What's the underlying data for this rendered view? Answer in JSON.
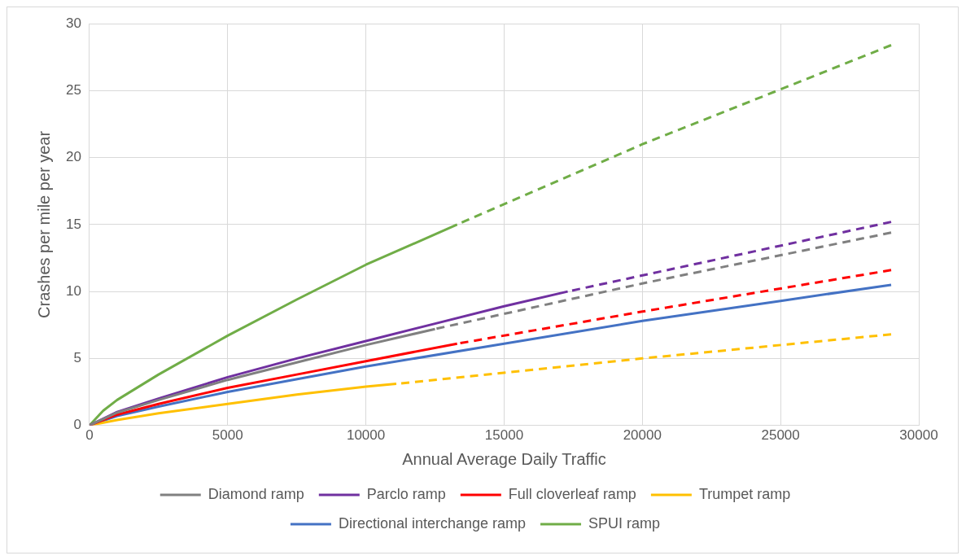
{
  "chart_data": {
    "type": "line",
    "xlabel": "Annual Average Daily Traffic",
    "ylabel": "Crashes per mile per year",
    "xlim": [
      0,
      30000
    ],
    "xticks": [
      0,
      5000,
      10000,
      15000,
      20000,
      25000,
      30000
    ],
    "ylim": [
      0,
      30
    ],
    "yticks": [
      0,
      5,
      10,
      15,
      20,
      25,
      30
    ],
    "grid": true,
    "legend": "bottom",
    "marker": "none",
    "series": [
      {
        "name": "Diamond ramp",
        "color": "#808080",
        "line_style": "solid",
        "x": [
          0,
          1000,
          2500,
          5000,
          7500,
          10000,
          12500
        ],
        "values": [
          0,
          0.95,
          1.9,
          3.4,
          4.7,
          6.0,
          7.2
        ]
      },
      {
        "name": "Parclo ramp",
        "color": "#7030a0",
        "line_style": "solid",
        "x": [
          0,
          1000,
          2500,
          5000,
          7500,
          10000,
          12500,
          15000,
          17300
        ],
        "values": [
          0,
          1.0,
          2.0,
          3.6,
          5.0,
          6.3,
          7.6,
          8.9,
          10.0
        ]
      },
      {
        "name": "Full cloverleaf ramp",
        "color": "#ff0000",
        "line_style": "solid",
        "x": [
          0,
          1000,
          2500,
          5000,
          7500,
          10000,
          13300
        ],
        "values": [
          0,
          0.8,
          1.6,
          2.8,
          3.8,
          4.8,
          6.1
        ]
      },
      {
        "name": "Trumpet ramp",
        "color": "#ffc000",
        "line_style": "solid",
        "x": [
          0,
          1000,
          2500,
          5000,
          7500,
          10000,
          11100
        ],
        "values": [
          0,
          0.4,
          0.9,
          1.6,
          2.3,
          2.9,
          3.1
        ]
      },
      {
        "name": "Directional interchange ramp",
        "color": "#4472c4",
        "line_style": "solid",
        "x": [
          0,
          1000,
          2500,
          5000,
          10000,
          15000,
          20000,
          25000,
          29000
        ],
        "values": [
          0,
          0.7,
          1.4,
          2.5,
          4.4,
          6.1,
          7.8,
          9.3,
          10.5
        ]
      },
      {
        "name": "SPUI ramp",
        "color": "#70ad47",
        "line_style": "solid",
        "x": [
          0,
          500,
          1000,
          2500,
          5000,
          7500,
          10000,
          13300
        ],
        "values": [
          0,
          1.1,
          1.9,
          3.8,
          6.7,
          9.4,
          12.0,
          15.0
        ]
      },
      {
        "color": "#808080",
        "line_style": "dashed",
        "x": [
          12500,
          20000,
          29000
        ],
        "values": [
          7.2,
          10.6,
          14.4
        ]
      },
      {
        "color": "#7030a0",
        "line_style": "dashed",
        "x": [
          17300,
          29000
        ],
        "values": [
          10.0,
          15.2
        ]
      },
      {
        "color": "#ff0000",
        "line_style": "dashed",
        "x": [
          13300,
          20000,
          29000
        ],
        "values": [
          6.1,
          8.5,
          11.6
        ]
      },
      {
        "color": "#ffc000",
        "line_style": "dashed",
        "x": [
          11100,
          20000,
          29000
        ],
        "values": [
          3.1,
          5.0,
          6.8
        ]
      },
      {
        "color": "#70ad47",
        "line_style": "dashed",
        "x": [
          13300,
          20000,
          25000,
          29000
        ],
        "values": [
          15.0,
          21.0,
          25.1,
          28.4
        ]
      }
    ]
  }
}
